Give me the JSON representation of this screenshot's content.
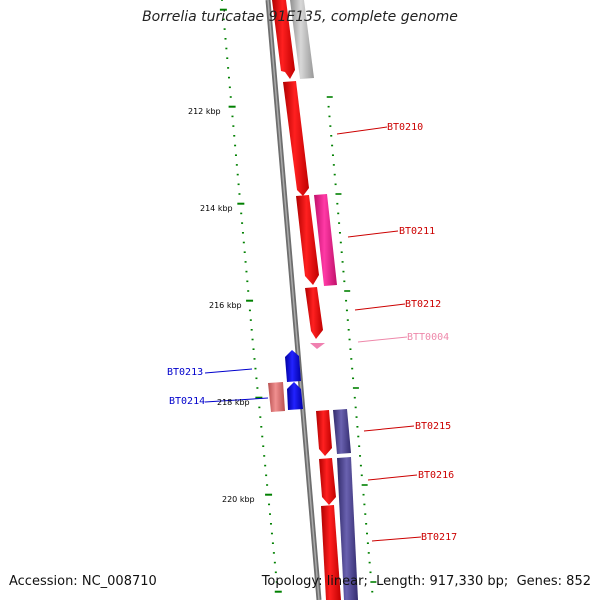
{
  "map": {
    "title": "Borrelia turicatae 91E135, complete genome",
    "accession_label": "Accession:",
    "accession": "NC_008710",
    "topology_label": "Topology:",
    "topology": "linear",
    "length_label": "Length:",
    "length": "917,330 bp",
    "genes_label": "Genes:",
    "genes": "852",
    "colors": {
      "forward_gene": "#ff0000",
      "magenta_gene": "#ff1493",
      "trna": "#ff69b4",
      "reverse_gene": "#0000ee",
      "pink_gene": "#e07070",
      "grey_gene": "#b8b8b8",
      "purple_gene": "#483d8b",
      "tick": "#008000",
      "backbone": "#888888",
      "label_red": "#cc0000",
      "label_blue": "#0000cc",
      "label_pink": "#ee88aa"
    },
    "scale_labels": [
      "212 kbp",
      "214 kbp",
      "216 kbp",
      "218 kbp",
      "220 kbp"
    ],
    "genes_list": [
      {
        "label": "BT0210",
        "color_key": "forward_gene",
        "label_color": "label_red"
      },
      {
        "label": "BT0211",
        "color_key": "forward_gene",
        "label_color": "label_red"
      },
      {
        "label": "BT0212",
        "color_key": "forward_gene",
        "label_color": "label_red"
      },
      {
        "label": "BTT0004",
        "color_key": "trna",
        "label_color": "label_pink"
      },
      {
        "label": "BT0213",
        "color_key": "reverse_gene",
        "label_color": "label_blue"
      },
      {
        "label": "BT0214",
        "color_key": "reverse_gene",
        "label_color": "label_blue"
      },
      {
        "label": "BT0215",
        "color_key": "forward_gene",
        "label_color": "label_red"
      },
      {
        "label": "BT0216",
        "color_key": "forward_gene",
        "label_color": "label_red"
      },
      {
        "label": "BT0217",
        "color_key": "forward_gene",
        "label_color": "label_red"
      }
    ]
  }
}
